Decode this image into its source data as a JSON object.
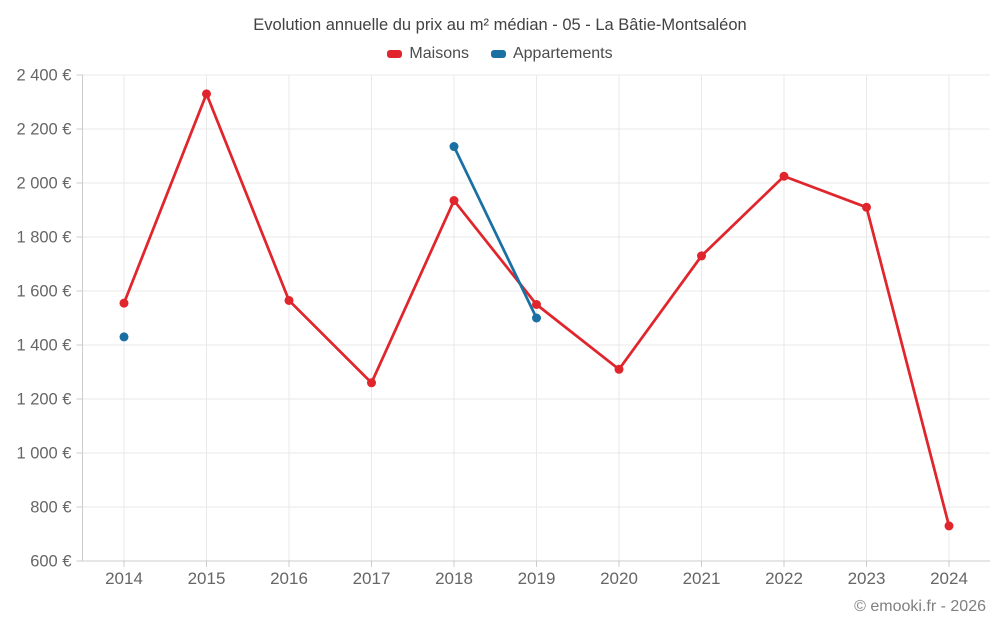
{
  "title": "Evolution annuelle du prix au m² médian - 05 - La Bâtie-Montsaléon",
  "footer": {
    "copyright": "© emooki.fr - 2026"
  },
  "colors": {
    "maisons": "#e1252c",
    "appartements": "#1a6fa3",
    "gridline": "#e9e9e9",
    "axis": "#cccccc",
    "tick_label": "#666666",
    "title_text": "#424242"
  },
  "chart_data": {
    "type": "line",
    "title": "Evolution annuelle du prix au m² médian - 05 - La Bâtie-Montsaléon",
    "categories": [
      "2014",
      "2015",
      "2016",
      "2017",
      "2018",
      "2019",
      "2020",
      "2021",
      "2022",
      "2023",
      "2024"
    ],
    "series": [
      {
        "name": "Maisons",
        "color": "#e1252c",
        "values": [
          1555,
          2330,
          1565,
          1260,
          1935,
          1550,
          1310,
          1730,
          2025,
          1910,
          730
        ]
      },
      {
        "name": "Appartements",
        "color": "#1a6fa3",
        "values": [
          1430,
          null,
          null,
          null,
          2135,
          1500,
          null,
          null,
          null,
          null,
          null
        ]
      }
    ],
    "xlabel": "",
    "ylabel": "",
    "ylim": [
      600,
      2400
    ],
    "ytick_step": 200,
    "ytick_suffix": " €",
    "grid": true,
    "legend_position": "top"
  }
}
